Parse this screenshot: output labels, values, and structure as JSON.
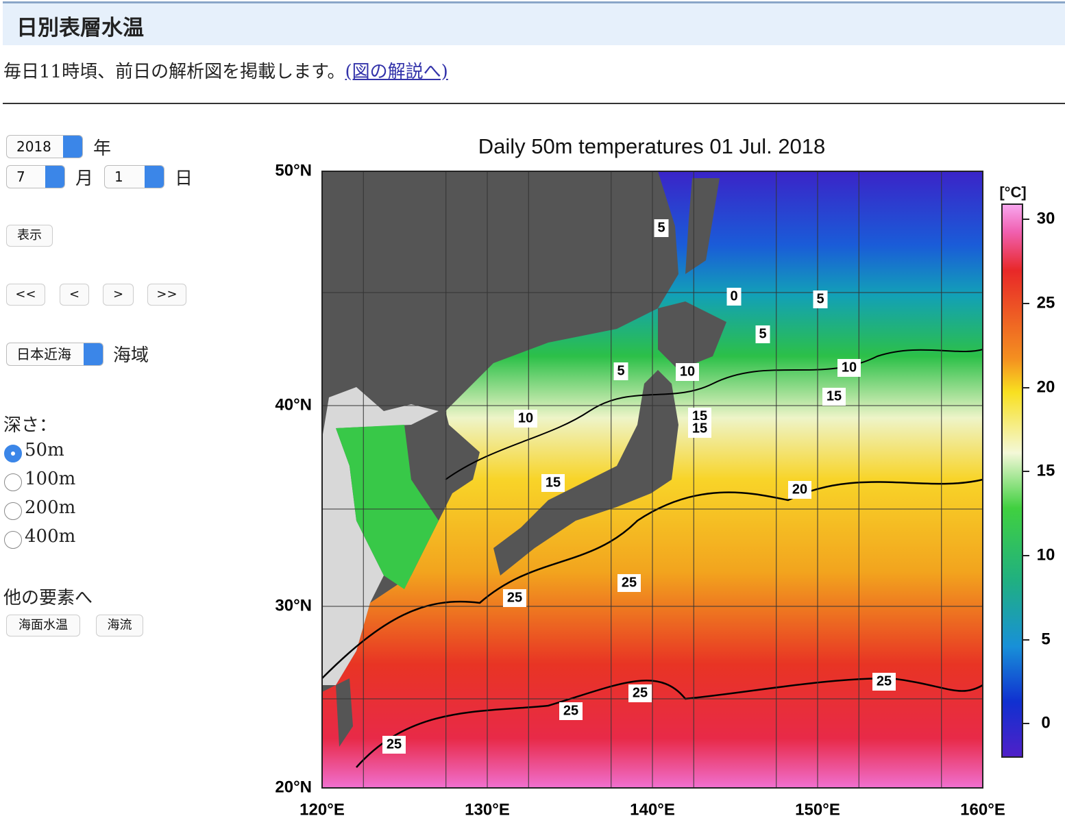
{
  "header": {
    "title": "日別表層水温"
  },
  "intro": {
    "text": "毎日11時頃、前日の解析図を掲載します。",
    "link": "(図の解説へ)"
  },
  "controls": {
    "year": "2018",
    "year_unit": "年",
    "month": "7",
    "month_unit": "月",
    "day": "1",
    "day_unit": "日",
    "show_button": "表示",
    "nav_buttons": [
      "<<",
      "<",
      ">",
      ">>"
    ],
    "area": "日本近海",
    "area_unit": "海域",
    "depth_label": "深さ：",
    "depths": [
      "50m",
      "100m",
      "200m",
      "400m"
    ],
    "selected_depth": 0,
    "other_label": "他の要素へ",
    "other_buttons": [
      "海面水温",
      "海流"
    ]
  },
  "figure": {
    "title": "Daily 50m temperatures 01 Jul. 2018",
    "lat_labels": [
      "50°N",
      "40°N",
      "30°N",
      "20°N"
    ],
    "lon_labels": [
      "120°E",
      "130°E",
      "140°E",
      "150°E",
      "160°E"
    ],
    "colorbar_unit": "[°C]",
    "colorbar_ticks": [
      30,
      25,
      20,
      15,
      10,
      5,
      0
    ],
    "contour_labels": [
      "5",
      "0",
      "5",
      "5",
      "5",
      "10",
      "10",
      "15",
      "10",
      "15",
      "15",
      "15",
      "20",
      "25",
      "25",
      "25",
      "25",
      "25",
      "25"
    ]
  }
}
